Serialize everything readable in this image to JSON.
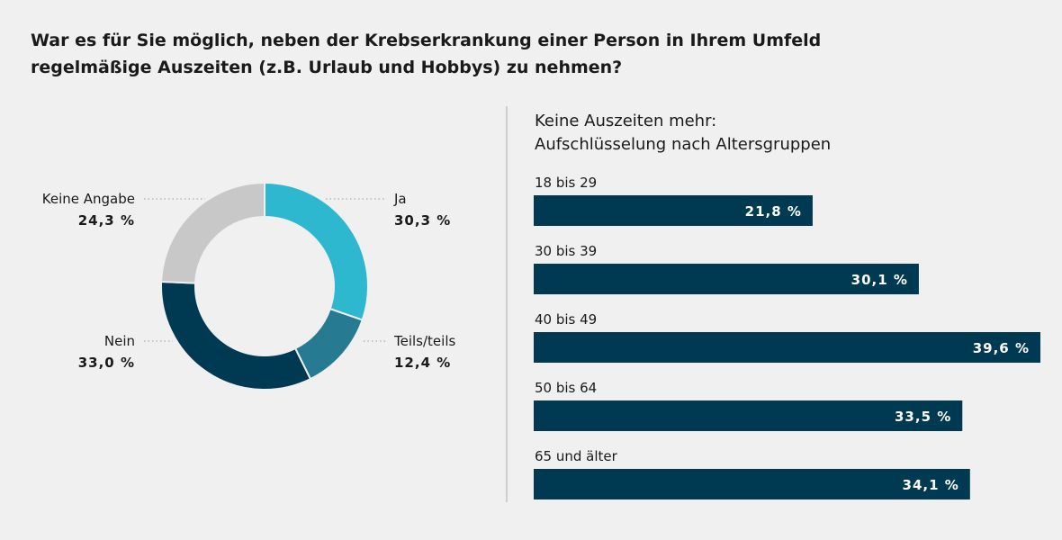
{
  "title": "War es für Sie möglich, neben der Krebserkrankung einer Person in Ihrem Umfeld regelmäßige Auszeiten (z.B. Urlaub und Hobbys) zu nehmen?",
  "chart_data": [
    {
      "type": "pie",
      "variant": "donut",
      "categories": [
        "Ja",
        "Teils/teils",
        "Nein",
        "Keine Angabe"
      ],
      "values": [
        30.3,
        12.4,
        33.0,
        24.3
      ],
      "value_labels": [
        "30,3 %",
        "12,4 %",
        "33,0 %",
        "24,3 %"
      ],
      "colors": [
        "#2db8d0",
        "#267a92",
        "#003a52",
        "#c8c8c8"
      ],
      "legend": "labels-around"
    },
    {
      "type": "bar",
      "orientation": "horizontal",
      "title_lines": [
        "Keine Auszeiten mehr:",
        "Aufschlüsselung nach Altersgruppen"
      ],
      "categories": [
        "18 bis 29",
        "30 bis 39",
        "40 bis 49",
        "50 bis 64",
        "65 und älter"
      ],
      "values": [
        21.8,
        30.1,
        39.6,
        33.5,
        34.1
      ],
      "value_labels": [
        "21,8 %",
        "30,1 %",
        "39,6 %",
        "33,5 %",
        "34,1 %"
      ],
      "color": "#003a52",
      "xlim": [
        0,
        39.6
      ]
    }
  ]
}
